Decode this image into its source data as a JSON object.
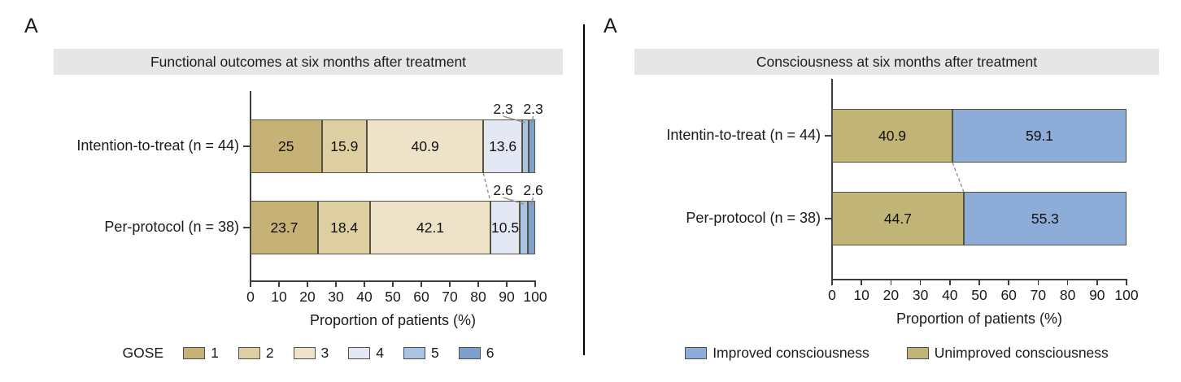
{
  "panels": [
    {
      "corner_label": "A",
      "header": "Functional outcomes at six months after treatment"
    },
    {
      "corner_label": "A",
      "header": "Consciousness at six months after treatment"
    }
  ],
  "chart_data": [
    {
      "type": "bar",
      "stacked": true,
      "orientation": "horizontal",
      "title": "Functional outcomes at six months after treatment",
      "categories": [
        "Intention-to-treat (n = 44)",
        "Per-protocol (n = 38)"
      ],
      "series": [
        {
          "name": "1",
          "color": "#c6b176",
          "values": [
            25,
            23.7
          ]
        },
        {
          "name": "2",
          "color": "#decfa3",
          "values": [
            15.9,
            18.4
          ]
        },
        {
          "name": "3",
          "color": "#eee2c9",
          "values": [
            40.9,
            42.1
          ]
        },
        {
          "name": "4",
          "color": "#e4e8f5",
          "values": [
            13.6,
            10.5
          ]
        },
        {
          "name": "5",
          "color": "#a8c4e2",
          "values": [
            2.3,
            2.6
          ]
        },
        {
          "name": "6",
          "color": "#7ea0cd",
          "values": [
            2.3,
            2.6
          ]
        }
      ],
      "xlabel": "Proportion of patients (%)",
      "xlim": [
        0,
        100
      ],
      "xticks": [
        0,
        10,
        20,
        30,
        40,
        50,
        60,
        70,
        80,
        90,
        100
      ],
      "grid": false,
      "legend_position": "bottom",
      "legend_title": "GOSE",
      "small_segment_labels_above_bar": true,
      "dashed_link_after_series_index": 2
    },
    {
      "type": "bar",
      "stacked": true,
      "orientation": "horizontal",
      "title": "Consciousness at six months after treatment",
      "categories": [
        "Intentin-to-treat (n = 44)",
        "Per-protocol (n = 38)"
      ],
      "series": [
        {
          "name": "Unimproved consciousness",
          "color": "#c1b477",
          "values": [
            40.9,
            44.7
          ]
        },
        {
          "name": "Improved consciousness",
          "color": "#8dacd7",
          "values": [
            59.1,
            55.3
          ]
        }
      ],
      "xlabel": "Proportion of patients (%)",
      "xlim": [
        0,
        100
      ],
      "xticks": [
        0,
        10,
        20,
        30,
        40,
        50,
        60,
        70,
        80,
        90,
        100
      ],
      "grid": false,
      "legend_position": "bottom",
      "legend": [
        {
          "label": "Improved consciousness",
          "color": "#8dacd7"
        },
        {
          "label": "Unimproved consciousness",
          "color": "#c1b477"
        }
      ],
      "dashed_link_after_series_index": 0
    }
  ]
}
